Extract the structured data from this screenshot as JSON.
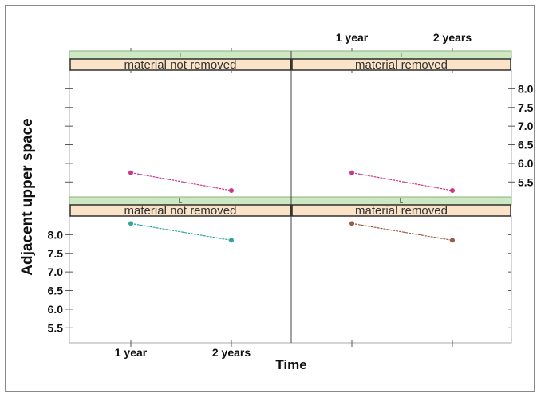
{
  "chart_data": {
    "type": "line",
    "layout": "2x2 trellis panels",
    "xlabel": "Time",
    "ylabel": "Adjacent upper space",
    "x_categories": [
      "1 year",
      "2 years"
    ],
    "y_ticks": [
      "5.5",
      "6.0",
      "6.5",
      "7.0",
      "7.5",
      "8.0"
    ],
    "ylim": [
      5.1,
      8.5
    ],
    "panels": [
      {
        "row": "top",
        "col": "left",
        "strip_top": "T",
        "strip_bottom": "material not removed",
        "series": [
          {
            "color": "#c8388c",
            "values": [
              5.75,
              5.27
            ]
          }
        ]
      },
      {
        "row": "top",
        "col": "right",
        "strip_top": "T",
        "strip_bottom": "material removed",
        "series": [
          {
            "color": "#c8388c",
            "values": [
              5.75,
              5.27
            ]
          }
        ]
      },
      {
        "row": "bottom",
        "col": "left",
        "strip_top": "L",
        "strip_bottom": "material not removed",
        "series": [
          {
            "color": "#2fa59c",
            "values": [
              8.3,
              7.85
            ]
          }
        ]
      },
      {
        "row": "bottom",
        "col": "right",
        "strip_top": "L",
        "strip_bottom": "material removed",
        "series": [
          {
            "color": "#9a5a44",
            "values": [
              8.3,
              7.85
            ]
          }
        ]
      }
    ],
    "colors": {
      "strip_top_bg": "#cfe8c4",
      "strip_bottom_bg": "#fbe3c8",
      "panel_border": "#aaaaaa",
      "divider": "#444444"
    }
  }
}
